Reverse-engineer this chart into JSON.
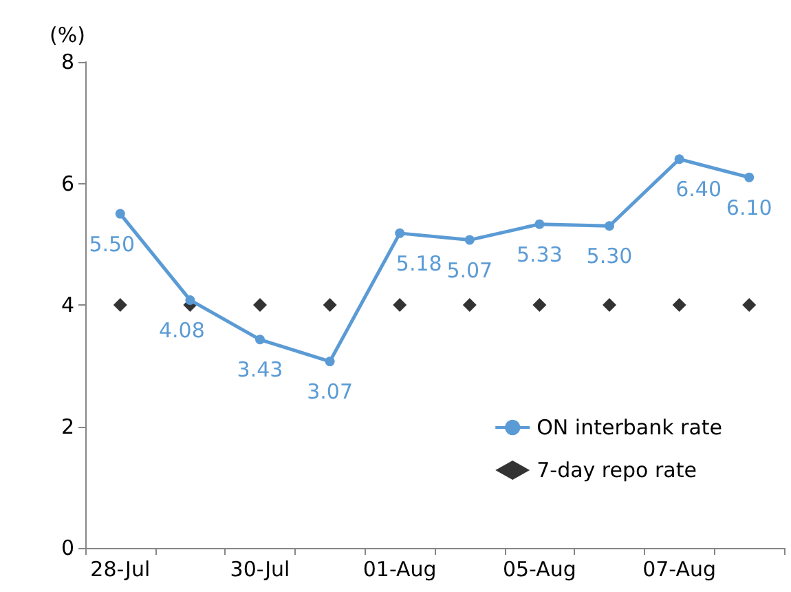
{
  "chart_data": {
    "type": "line",
    "ylabel": "(%)",
    "categories": [
      "28-Jul",
      null,
      "30-Jul",
      null,
      "01-Aug",
      null,
      "05-Aug",
      null,
      "07-Aug",
      null
    ],
    "series": [
      {
        "name": "ON interbank rate",
        "color": "#5b9bd5",
        "marker": "circle",
        "values": [
          5.5,
          4.08,
          3.43,
          3.07,
          5.18,
          5.07,
          5.33,
          5.3,
          6.4,
          6.1
        ],
        "value_labels": [
          "5.50",
          "4.08",
          "3.43",
          "3.07",
          "5.18",
          "5.07",
          "5.33",
          "5.30",
          "6.40",
          "6.10"
        ]
      },
      {
        "name": "7-day repo rate",
        "type": "scatter",
        "color": "#000000",
        "marker": "diamond",
        "values": [
          4,
          4,
          4,
          4,
          4,
          4,
          4,
          4,
          4,
          4
        ]
      }
    ],
    "ylim": [
      0,
      8
    ],
    "yticks": [
      0,
      2,
      4,
      6,
      8
    ],
    "grid": false,
    "legend": "bottom right"
  }
}
